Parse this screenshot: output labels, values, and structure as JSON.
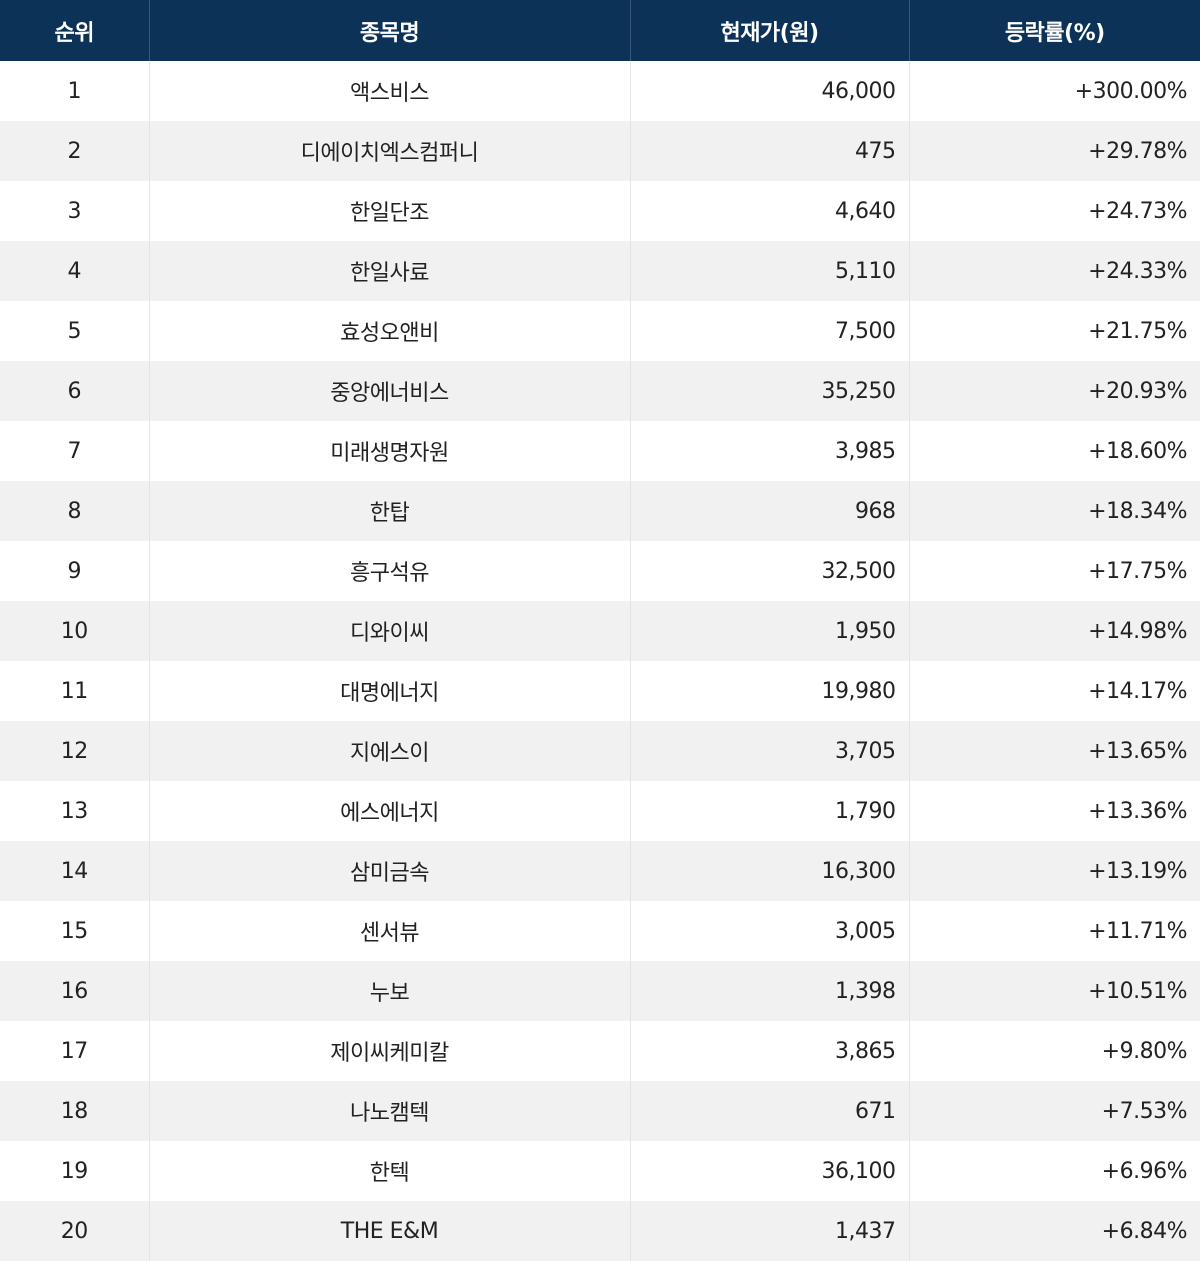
{
  "colors": {
    "header_bg": "#0c3257",
    "row_alt_bg": "#f1f1f1",
    "text": "#222222"
  },
  "table": {
    "headers": [
      "순위",
      "종목명",
      "현재가(원)",
      "등락률(%)"
    ],
    "rows": [
      {
        "rank": "1",
        "name": "액스비스",
        "price": "46,000",
        "rate": "+300.00%"
      },
      {
        "rank": "2",
        "name": "디에이치엑스컴퍼니",
        "price": "475",
        "rate": "+29.78%"
      },
      {
        "rank": "3",
        "name": "한일단조",
        "price": "4,640",
        "rate": "+24.73%"
      },
      {
        "rank": "4",
        "name": "한일사료",
        "price": "5,110",
        "rate": "+24.33%"
      },
      {
        "rank": "5",
        "name": "효성오앤비",
        "price": "7,500",
        "rate": "+21.75%"
      },
      {
        "rank": "6",
        "name": "중앙에너비스",
        "price": "35,250",
        "rate": "+20.93%"
      },
      {
        "rank": "7",
        "name": "미래생명자원",
        "price": "3,985",
        "rate": "+18.60%"
      },
      {
        "rank": "8",
        "name": "한탑",
        "price": "968",
        "rate": "+18.34%"
      },
      {
        "rank": "9",
        "name": "흥구석유",
        "price": "32,500",
        "rate": "+17.75%"
      },
      {
        "rank": "10",
        "name": "디와이씨",
        "price": "1,950",
        "rate": "+14.98%"
      },
      {
        "rank": "11",
        "name": "대명에너지",
        "price": "19,980",
        "rate": "+14.17%"
      },
      {
        "rank": "12",
        "name": "지에스이",
        "price": "3,705",
        "rate": "+13.65%"
      },
      {
        "rank": "13",
        "name": "에스에너지",
        "price": "1,790",
        "rate": "+13.36%"
      },
      {
        "rank": "14",
        "name": "삼미금속",
        "price": "16,300",
        "rate": "+13.19%"
      },
      {
        "rank": "15",
        "name": "센서뷰",
        "price": "3,005",
        "rate": "+11.71%"
      },
      {
        "rank": "16",
        "name": "누보",
        "price": "1,398",
        "rate": "+10.51%"
      },
      {
        "rank": "17",
        "name": "제이씨케미칼",
        "price": "3,865",
        "rate": "+9.80%"
      },
      {
        "rank": "18",
        "name": "나노캠텍",
        "price": "671",
        "rate": "+7.53%"
      },
      {
        "rank": "19",
        "name": "한텍",
        "price": "36,100",
        "rate": "+6.96%"
      },
      {
        "rank": "20",
        "name": "THE E&M",
        "price": "1,437",
        "rate": "+6.84%"
      }
    ]
  }
}
